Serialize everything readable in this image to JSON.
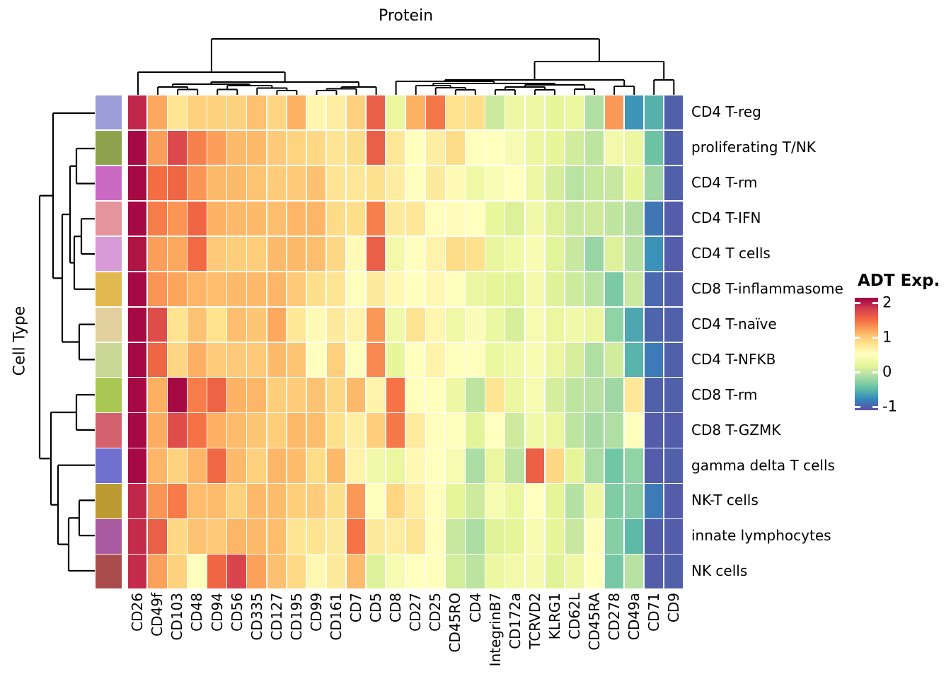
{
  "chart_data": {
    "type": "heatmap",
    "title": "Protein",
    "ylabel": "Cell Type",
    "legend": {
      "title": "ADT Exp.",
      "tick_labels": [
        "2",
        "1",
        "0",
        "-1"
      ],
      "tick_values": [
        2,
        1,
        0,
        -1
      ]
    },
    "colorscale": {
      "name": "spectral_reversed",
      "domain": [
        -1.1,
        2.15
      ],
      "colors": [
        "#5E4FA2",
        "#3288BD",
        "#66C2A5",
        "#ABDDA4",
        "#E6F598",
        "#FFFFBF",
        "#FEE08B",
        "#FDAE61",
        "#F46D43",
        "#D53E4F",
        "#9E0142"
      ]
    },
    "columns": [
      "CD26",
      "CD49f",
      "CD103",
      "CD48",
      "CD94",
      "CD56",
      "CD335",
      "CD127",
      "CD195",
      "CD99",
      "CD161",
      "CD7",
      "CD5",
      "CD8",
      "CD27",
      "CD25",
      "CD45RO",
      "CD4",
      "IntegrinB7",
      "CD172a",
      "TCRVD2",
      "KLRG1",
      "CD62L",
      "CD45RA",
      "CD278",
      "CD49a",
      "CD71",
      "CD9"
    ],
    "rows": [
      "CD4 T-reg",
      "proliferating T/NK",
      "CD4 T-rm",
      "CD4 T-IFN",
      "CD4 T cells",
      "CD8 T-inflammasome",
      "CD4 T-naïve",
      "CD4 T-NFKB",
      "CD8 T-rm",
      "CD8 T-GZMK",
      "gamma delta T cells",
      "NK-T cells",
      "innate lymphocytes",
      "NK cells"
    ],
    "row_annotation_colors": [
      "#9d9dda",
      "#8ca24c",
      "#cb6ac3",
      "#e4949c",
      "#d99ad8",
      "#e2b94e",
      "#e2cf9e",
      "#cbd795",
      "#a9c853",
      "#d4616e",
      "#7070cf",
      "#bd9b33",
      "#a95aa0",
      "#aa4b4b"
    ],
    "values": [
      [
        1.95,
        1.2,
        0.8,
        0.95,
        0.95,
        0.95,
        1.05,
        0.92,
        1.15,
        0.62,
        0.72,
        0.95,
        1.6,
        0.25,
        1.15,
        1.45,
        0.83,
        0.85,
        0.05,
        0.3,
        0.3,
        0.22,
        0.25,
        -0.1,
        1.28,
        -0.7,
        -0.55,
        -1.0
      ],
      [
        2.1,
        1.25,
        1.75,
        1.4,
        1.25,
        1.1,
        1.1,
        1.0,
        0.93,
        0.9,
        0.8,
        0.87,
        1.6,
        0.77,
        0.52,
        0.7,
        0.87,
        0.54,
        0.53,
        0.4,
        0.28,
        0.22,
        0.08,
        -0.02,
        0.35,
        0.28,
        -0.42,
        -1.0
      ],
      [
        2.1,
        1.5,
        1.55,
        1.3,
        1.1,
        1.1,
        1.03,
        0.98,
        1.0,
        1.05,
        0.8,
        0.78,
        0.84,
        0.72,
        0.55,
        0.74,
        0.58,
        0.32,
        0.45,
        0.52,
        0.3,
        0.1,
        -0.05,
        0.02,
        0.03,
        0.22,
        -0.18,
        -1.0
      ],
      [
        2.1,
        1.42,
        1.3,
        1.55,
        1.15,
        1.1,
        1.1,
        1.07,
        1.13,
        1.12,
        0.88,
        0.85,
        1.4,
        0.75,
        0.77,
        0.55,
        0.56,
        0.53,
        0.23,
        0.15,
        0.33,
        0.15,
        0.04,
        0.07,
        -0.01,
        -0.08,
        -0.88,
        -1.02
      ],
      [
        2.05,
        1.25,
        1.2,
        1.52,
        1.0,
        0.97,
        0.97,
        1.1,
        1.1,
        1.08,
        0.9,
        0.58,
        1.6,
        0.35,
        0.54,
        0.65,
        0.87,
        0.84,
        0.24,
        0.32,
        0.42,
        0.18,
        0.03,
        -0.22,
        0.15,
        -0.06,
        -0.72,
        -1.02
      ],
      [
        2.1,
        1.3,
        1.22,
        1.13,
        1.08,
        1.1,
        1.1,
        1.12,
        1.0,
        0.85,
        0.8,
        0.5,
        0.75,
        0.6,
        0.52,
        0.6,
        0.55,
        0.27,
        0.22,
        0.18,
        0.37,
        0.16,
        0.06,
        -0.05,
        -0.35,
        0.04,
        -0.95,
        -1.01
      ],
      [
        2.1,
        1.72,
        0.82,
        1.04,
        0.83,
        1.07,
        1.02,
        1.2,
        0.77,
        0.58,
        0.74,
        0.65,
        1.28,
        0.33,
        0.82,
        0.62,
        0.32,
        0.46,
        0.28,
        0.12,
        0.4,
        0.25,
        0.33,
        0.27,
        -0.25,
        -0.6,
        -0.98,
        -1.0
      ],
      [
        2.1,
        1.55,
        0.92,
        1.16,
        0.98,
        0.99,
        1.0,
        1.1,
        1.03,
        0.52,
        0.96,
        0.5,
        1.36,
        0.22,
        0.53,
        0.66,
        0.55,
        0.5,
        0.26,
        0.33,
        0.4,
        0.27,
        0.12,
        -0.1,
        0.08,
        -0.53,
        -0.85,
        -1.0
      ],
      [
        2.1,
        1.17,
        2.1,
        1.42,
        1.57,
        1.15,
        1.12,
        0.97,
        0.98,
        1.04,
        0.9,
        1.1,
        0.65,
        1.47,
        0.5,
        0.54,
        0.3,
        -0.02,
        0.8,
        0.28,
        0.4,
        0.1,
        -0.02,
        -0.06,
        -0.18,
        0.78,
        -1.0,
        -1.0
      ],
      [
        2.1,
        1.18,
        1.72,
        1.48,
        1.17,
        1.09,
        1.02,
        0.97,
        1.1,
        1.08,
        0.84,
        0.69,
        0.97,
        1.44,
        0.73,
        0.55,
        0.5,
        0.18,
        0.52,
        0.07,
        0.33,
        0.25,
        -0.02,
        -0.15,
        -0.1,
        0.5,
        -1.02,
        -1.02
      ],
      [
        2.1,
        1.12,
        0.94,
        1.12,
        1.53,
        1.1,
        0.95,
        1.13,
        1.09,
        0.87,
        1.1,
        0.66,
        0.33,
        0.25,
        0.6,
        0.53,
        0.4,
        -0.12,
        0.25,
        -0.03,
        1.58,
        0.9,
        0.2,
        -0.13,
        -0.4,
        -0.25,
        -1.02,
        -1.0
      ],
      [
        1.95,
        1.3,
        1.43,
        1.08,
        1.09,
        0.95,
        1.1,
        1.09,
        0.97,
        0.98,
        0.85,
        1.28,
        0.5,
        0.91,
        0.72,
        0.55,
        0.2,
        0.06,
        0.4,
        0.26,
        0.52,
        0.2,
        -0.07,
        0.3,
        -0.33,
        -0.28,
        -0.85,
        -1.02
      ],
      [
        1.92,
        1.6,
        0.9,
        1.04,
        1.0,
        1.13,
        1.1,
        1.08,
        0.8,
        0.82,
        0.74,
        1.47,
        0.75,
        0.72,
        0.8,
        0.55,
        0.03,
        -0.12,
        0.17,
        0.2,
        0.42,
        0.22,
        0.03,
        0.5,
        -0.3,
        -0.5,
        -1.02,
        -1.02
      ],
      [
        1.92,
        1.24,
        0.95,
        0.5,
        1.55,
        1.78,
        1.24,
        1.06,
        0.89,
        0.6,
        0.75,
        1.09,
        0.15,
        0.4,
        0.52,
        0.51,
        0.09,
        -0.03,
        0.28,
        0.35,
        0.38,
        0.17,
        0.3,
        0.52,
        -0.37,
        -0.06,
        -1.02,
        -1.0
      ]
    ],
    "dendrograms": {
      "top_segments": [
        [
          251.1,
          126.5,
          279.2,
          126.5
        ],
        [
          223.1,
          123,
          265.1,
          123
        ],
        [
          307.2,
          126.5,
          335.3,
          126.5
        ],
        [
          391.4,
          128,
          419.4,
          128
        ],
        [
          363.3,
          124.5,
          405.4,
          124.5
        ],
        [
          321.2,
          121,
          384.4,
          121
        ],
        [
          244.1,
          119,
          352.8,
          119
        ],
        [
          447.5,
          128,
          475.5,
          128
        ],
        [
          461.5,
          125.5,
          503.5,
          125.5
        ],
        [
          482.5,
          123,
          531.6,
          123
        ],
        [
          298.4,
          116,
          507.0,
          116
        ],
        [
          195,
          102,
          402.7,
          102
        ],
        [
          643.8,
          127,
          671.8,
          127
        ],
        [
          615.7,
          124,
          657.8,
          124
        ],
        [
          587.7,
          121,
          636.8,
          121
        ],
        [
          699.9,
          127,
          727.9,
          127
        ],
        [
          755.9,
          127,
          784.0,
          127
        ],
        [
          713.9,
          123,
          770.0,
          123
        ],
        [
          812.0,
          126,
          840.1,
          126
        ],
        [
          741.9,
          120,
          826.1,
          120
        ],
        [
          612.2,
          118,
          784.0,
          118
        ],
        [
          559.6,
          115,
          698.1,
          115
        ],
        [
          868.1,
          122,
          896.2,
          122
        ],
        [
          628.8,
          113,
          882.2,
          113
        ],
        [
          924.2,
          113,
          952.3,
          113
        ],
        [
          755.5,
          87,
          938.2,
          87
        ],
        [
          298.9,
          55,
          846.9,
          55
        ],
        [
          265.1,
          123,
          265.1,
          126.5
        ],
        [
          244.1,
          119,
          244.1,
          123
        ],
        [
          405.4,
          124.5,
          405.4,
          128
        ],
        [
          384.4,
          121,
          384.4,
          124.5
        ],
        [
          321.2,
          121,
          321.2,
          126.5
        ],
        [
          352.8,
          119,
          352.8,
          121
        ],
        [
          298.4,
          116,
          298.4,
          119
        ],
        [
          461.5,
          125.5,
          461.5,
          128
        ],
        [
          482.5,
          123,
          482.5,
          125.5
        ],
        [
          507.0,
          116,
          507.0,
          123
        ],
        [
          402.7,
          102,
          402.7,
          116
        ],
        [
          298.9,
          55,
          298.9,
          102
        ],
        [
          657.8,
          124,
          657.8,
          127
        ],
        [
          636.8,
          121,
          636.8,
          124
        ],
        [
          612.2,
          118,
          612.2,
          121
        ],
        [
          713.9,
          123,
          713.9,
          127
        ],
        [
          770.0,
          123,
          770.0,
          127
        ],
        [
          741.9,
          120,
          741.9,
          123
        ],
        [
          826.1,
          120,
          826.1,
          126
        ],
        [
          784.0,
          118,
          784.0,
          120
        ],
        [
          698.1,
          115,
          698.1,
          118
        ],
        [
          628.8,
          113,
          628.8,
          115
        ],
        [
          882.2,
          113,
          882.2,
          122
        ],
        [
          755.5,
          87,
          755.5,
          113
        ],
        [
          938.2,
          87,
          938.2,
          113
        ],
        [
          846.9,
          55,
          846.9,
          87
        ],
        [
          195,
          102,
          195,
          134
        ],
        [
          223.1,
          123,
          223.1,
          134
        ],
        [
          251.1,
          126.5,
          251.1,
          134
        ],
        [
          279.2,
          126.5,
          279.2,
          134
        ],
        [
          307.2,
          126.5,
          307.2,
          134
        ],
        [
          335.3,
          126.5,
          335.3,
          134
        ],
        [
          363.3,
          124.5,
          363.3,
          134
        ],
        [
          391.4,
          128,
          391.4,
          134
        ],
        [
          419.4,
          128,
          419.4,
          134
        ],
        [
          447.5,
          128,
          447.5,
          134
        ],
        [
          475.5,
          128,
          475.5,
          134
        ],
        [
          503.5,
          125.5,
          503.5,
          134
        ],
        [
          531.6,
          123,
          531.6,
          134
        ],
        [
          559.6,
          115,
          559.6,
          134
        ],
        [
          587.7,
          121,
          587.7,
          134
        ],
        [
          615.7,
          124,
          615.7,
          134
        ],
        [
          643.8,
          127,
          643.8,
          134
        ],
        [
          671.8,
          127,
          671.8,
          134
        ],
        [
          699.9,
          127,
          699.9,
          134
        ],
        [
          727.9,
          127,
          727.9,
          134
        ],
        [
          755.9,
          127,
          755.9,
          134
        ],
        [
          784,
          127,
          784,
          134
        ],
        [
          812,
          126,
          812,
          134
        ],
        [
          840.1,
          126,
          840.1,
          134
        ],
        [
          868.1,
          122,
          868.1,
          134
        ],
        [
          896.2,
          122,
          896.2,
          134
        ],
        [
          924.2,
          113,
          924.2,
          134
        ],
        [
          952.3,
          113,
          952.3,
          134
        ]
      ],
      "left_segments": [
        [
          108,
          210,
          108,
          259.5
        ],
        [
          108,
          210,
          134,
          210
        ],
        [
          108,
          259.5,
          134,
          259.5
        ],
        [
          115,
          309.3,
          115,
          359
        ],
        [
          115,
          309.3,
          134,
          309.3
        ],
        [
          115,
          359,
          134,
          359
        ],
        [
          105,
          334.2,
          105,
          408.8
        ],
        [
          105,
          334.2,
          115,
          334.2
        ],
        [
          105,
          408.8,
          134,
          408.8
        ],
        [
          99,
          234.8,
          99,
          371.5
        ],
        [
          99,
          234.8,
          108,
          234.8
        ],
        [
          99,
          371.5,
          105,
          371.5
        ],
        [
          112,
          458.6,
          112,
          508.4
        ],
        [
          112,
          458.6,
          134,
          458.6
        ],
        [
          112,
          508.4,
          134,
          508.4
        ],
        [
          88,
          303.1,
          88,
          483.5
        ],
        [
          88,
          303.1,
          99,
          303.1
        ],
        [
          88,
          483.5,
          112,
          483.5
        ],
        [
          75,
          160,
          75,
          393.3
        ],
        [
          75,
          160,
          134,
          160
        ],
        [
          75,
          393.3,
          88,
          393.3
        ],
        [
          108,
          558.1,
          108,
          607.9
        ],
        [
          108,
          558.1,
          134,
          558.1
        ],
        [
          108,
          607.9,
          134,
          607.9
        ],
        [
          112,
          707.4,
          112,
          757.2
        ],
        [
          112,
          707.4,
          134,
          707.4
        ],
        [
          112,
          757.2,
          134,
          757.2
        ],
        [
          97,
          732.3,
          97,
          807
        ],
        [
          97,
          732.3,
          112,
          732.3
        ],
        [
          97,
          807,
          134,
          807
        ],
        [
          82,
          657.7,
          82,
          769.6
        ],
        [
          82,
          657.7,
          134,
          657.7
        ],
        [
          82,
          769.6,
          97,
          769.6
        ],
        [
          72,
          583,
          72,
          713.7
        ],
        [
          72,
          583,
          108,
          583
        ],
        [
          72,
          713.7,
          82,
          713.7
        ],
        [
          56,
          276.6,
          56,
          648.3
        ],
        [
          56,
          276.6,
          75,
          276.6
        ],
        [
          56,
          648.3,
          72,
          648.3
        ]
      ]
    }
  }
}
